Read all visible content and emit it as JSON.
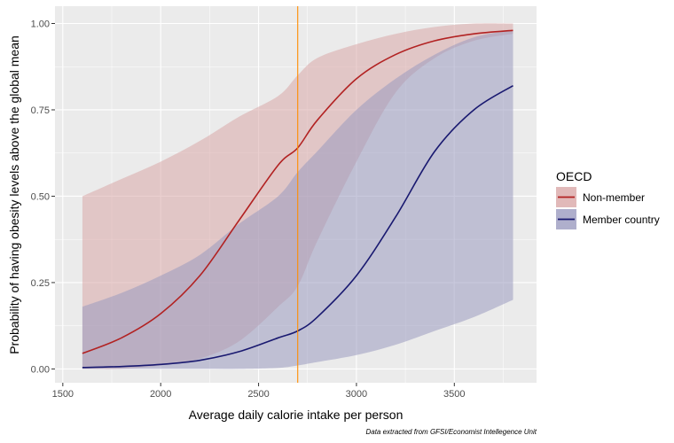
{
  "chart_data": {
    "type": "line",
    "xlabel": "Average daily calorie intake per person",
    "ylabel": "Probability of having obesity levels above the global mean",
    "caption": "Data extracted from GFSI/Economist Intellegence Unit",
    "xlim": [
      1460,
      3920
    ],
    "ylim": [
      -0.04,
      1.05
    ],
    "x_ticks": [
      {
        "value": 1500,
        "label": "1500"
      },
      {
        "value": 2000,
        "label": "2000"
      },
      {
        "value": 2500,
        "label": "2500"
      },
      {
        "value": 3000,
        "label": "3000"
      },
      {
        "value": 3500,
        "label": "3500"
      }
    ],
    "y_ticks": [
      {
        "value": 0,
        "label": "0.00"
      },
      {
        "value": 0.25,
        "label": "0.25"
      },
      {
        "value": 0.5,
        "label": "0.50"
      },
      {
        "value": 0.75,
        "label": "0.75"
      },
      {
        "value": 1.0,
        "label": "1.00"
      }
    ],
    "grid": true,
    "background": "#ebebeb",
    "reference_line": {
      "x": 2700,
      "color": "#ff8c00"
    },
    "legend": {
      "title": "OECD",
      "placement": "right"
    },
    "series": [
      {
        "name": "Non-member",
        "line_color": "#b22222",
        "fill_color": "#d9a8a8",
        "x": [
          1600,
          1800,
          2000,
          2200,
          2400,
          2600,
          2700,
          2800,
          3000,
          3200,
          3400,
          3600,
          3800
        ],
        "y": [
          0.045,
          0.09,
          0.16,
          0.27,
          0.43,
          0.59,
          0.64,
          0.72,
          0.84,
          0.91,
          0.95,
          0.97,
          0.98
        ],
        "lower": [
          0.0,
          0.0,
          0.01,
          0.03,
          0.08,
          0.18,
          0.24,
          0.37,
          0.6,
          0.8,
          0.9,
          0.95,
          0.97
        ],
        "upper": [
          0.5,
          0.55,
          0.6,
          0.66,
          0.73,
          0.79,
          0.85,
          0.9,
          0.94,
          0.97,
          0.99,
          1.0,
          1.0
        ]
      },
      {
        "name": "Member country",
        "line_color": "#191970",
        "fill_color": "#9b9bbf",
        "x": [
          1600,
          1800,
          2000,
          2200,
          2400,
          2600,
          2700,
          2800,
          3000,
          3200,
          3400,
          3600,
          3800
        ],
        "y": [
          0.004,
          0.007,
          0.013,
          0.025,
          0.05,
          0.09,
          0.11,
          0.15,
          0.27,
          0.44,
          0.63,
          0.75,
          0.82
        ],
        "lower": [
          0.0,
          0.0,
          0.0,
          0.0,
          0.0,
          0.003,
          0.01,
          0.02,
          0.04,
          0.07,
          0.11,
          0.15,
          0.2
        ],
        "upper": [
          0.18,
          0.22,
          0.27,
          0.33,
          0.42,
          0.5,
          0.57,
          0.63,
          0.75,
          0.84,
          0.91,
          0.96,
          0.98
        ]
      }
    ]
  }
}
